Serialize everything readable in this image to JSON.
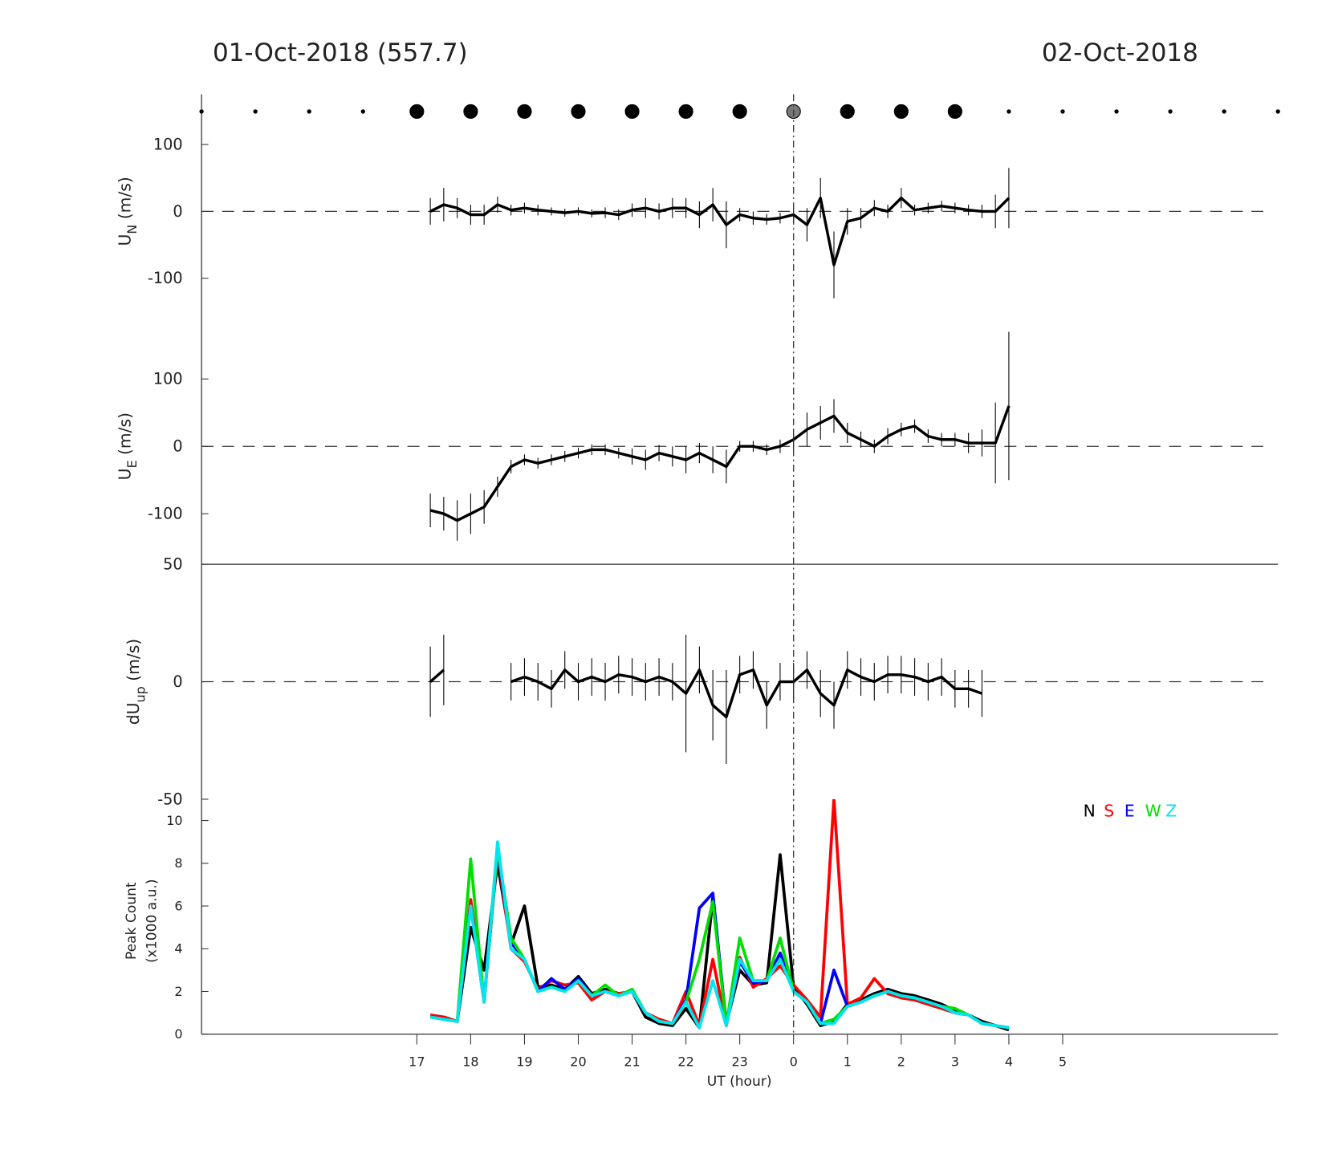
{
  "title_left": "01-Oct-2018 (557.7)",
  "title_right": "02-Oct-2018",
  "chart_data": [
    {
      "type": "line",
      "ylabel": "U",
      "ylabel_sub": "N",
      "ylabel_unit": "(m/s)",
      "xlim": [
        13,
        33
      ],
      "ylim": [
        -175,
        175
      ],
      "yticks": [
        -100,
        0,
        100
      ],
      "hline": 0,
      "markers": {
        "x": [
          13,
          14,
          15,
          16,
          17,
          18,
          19,
          20,
          21,
          22,
          23,
          24,
          25,
          26,
          27,
          28,
          29,
          30,
          31,
          32,
          33
        ],
        "sizes": [
          2,
          2,
          2,
          2,
          8,
          8,
          8,
          8,
          8,
          8,
          8,
          8,
          8,
          8,
          8,
          2,
          2,
          2,
          2,
          2,
          2
        ],
        "colors": [
          "#000",
          "#000",
          "#000",
          "#000",
          "#000",
          "#000",
          "#000",
          "#000",
          "#000",
          "#000",
          "#000",
          "#777",
          "#000",
          "#000",
          "#000",
          "#000",
          "#000",
          "#000",
          "#000",
          "#000",
          "#000"
        ]
      },
      "x": [
        17.25,
        17.5,
        17.75,
        18,
        18.25,
        18.5,
        18.75,
        19,
        19.25,
        19.5,
        19.75,
        20,
        20.25,
        20.5,
        20.75,
        21,
        21.25,
        21.5,
        21.75,
        22,
        22.25,
        22.5,
        22.75,
        23,
        23.25,
        23.5,
        23.75,
        24,
        24.25,
        24.5,
        24.75,
        25,
        25.25,
        25.5,
        25.75,
        26,
        26.25,
        26.5,
        26.75,
        27,
        27.25,
        27.5,
        27.75,
        28
      ],
      "series": [
        {
          "color": "#000",
          "values": [
            0,
            10,
            5,
            -5,
            -5,
            10,
            2,
            5,
            2,
            0,
            -2,
            0,
            -3,
            -2,
            -5,
            2,
            5,
            0,
            5,
            5,
            -5,
            10,
            -20,
            -5,
            -10,
            -12,
            -10,
            -5,
            -20,
            20,
            -80,
            -15,
            -10,
            5,
            0,
            20,
            2,
            5,
            8,
            5,
            2,
            0,
            0,
            20
          ],
          "errors": [
            20,
            25,
            15,
            15,
            15,
            12,
            8,
            8,
            8,
            6,
            6,
            6,
            6,
            8,
            8,
            10,
            15,
            12,
            15,
            15,
            20,
            25,
            35,
            10,
            10,
            8,
            8,
            10,
            25,
            30,
            50,
            20,
            15,
            12,
            10,
            15,
            8,
            8,
            8,
            8,
            8,
            10,
            25,
            45
          ]
        }
      ]
    },
    {
      "type": "line",
      "ylabel": "U",
      "ylabel_sub": "E",
      "ylabel_unit": "(m/s)",
      "xlim": [
        13,
        33
      ],
      "ylim": [
        -175,
        175
      ],
      "yticks": [
        -100,
        0,
        100
      ],
      "hline": 0,
      "x": [
        17.25,
        17.5,
        17.75,
        18,
        18.25,
        18.5,
        18.75,
        19,
        19.25,
        19.5,
        19.75,
        20,
        20.25,
        20.5,
        20.75,
        21,
        21.25,
        21.5,
        21.75,
        22,
        22.25,
        22.5,
        22.75,
        23,
        23.25,
        23.5,
        23.75,
        24,
        24.25,
        24.5,
        24.75,
        25,
        25.25,
        25.5,
        25.75,
        26,
        26.25,
        26.5,
        26.75,
        27,
        27.25,
        27.5,
        27.75,
        28
      ],
      "series": [
        {
          "color": "#000",
          "values": [
            -95,
            -100,
            -110,
            -100,
            -90,
            -60,
            -30,
            -20,
            -25,
            -20,
            -15,
            -10,
            -5,
            -5,
            -10,
            -15,
            -20,
            -10,
            -15,
            -20,
            -10,
            -20,
            -30,
            0,
            0,
            -5,
            0,
            10,
            25,
            35,
            45,
            20,
            10,
            0,
            15,
            25,
            30,
            15,
            10,
            10,
            5,
            5,
            5,
            60
          ],
          "errors": [
            25,
            25,
            30,
            30,
            25,
            15,
            10,
            8,
            8,
            8,
            8,
            8,
            8,
            8,
            8,
            12,
            15,
            12,
            15,
            20,
            15,
            20,
            25,
            8,
            8,
            8,
            10,
            15,
            25,
            25,
            25,
            15,
            12,
            10,
            12,
            10,
            10,
            10,
            10,
            10,
            15,
            20,
            60,
            110
          ]
        }
      ]
    },
    {
      "type": "line",
      "ylabel": "dU",
      "ylabel_sub": "up",
      "ylabel_unit": "(m/s)",
      "xlim": [
        13,
        33
      ],
      "ylim": [
        -50,
        50
      ],
      "yticks": [
        -50,
        0,
        50
      ],
      "hline": 0,
      "x": [
        17.25,
        17.5,
        17.75,
        18,
        18.25,
        18.5,
        18.75,
        19,
        19.25,
        19.5,
        19.75,
        20,
        20.25,
        20.5,
        20.75,
        21,
        21.25,
        21.5,
        21.75,
        22,
        22.25,
        22.5,
        22.75,
        23,
        23.25,
        23.5,
        23.75,
        24,
        24.25,
        24.5,
        24.75,
        25,
        25.25,
        25.5,
        25.75,
        26,
        26.25,
        26.5,
        26.75,
        27,
        27.25,
        27.5,
        27.75,
        28
      ],
      "series": [
        {
          "color": "#000",
          "values": [
            0,
            5,
            null,
            null,
            null,
            null,
            0,
            2,
            0,
            -3,
            5,
            0,
            2,
            0,
            3,
            2,
            0,
            2,
            0,
            -5,
            5,
            -10,
            -15,
            3,
            5,
            -10,
            0,
            0,
            5,
            -5,
            -10,
            5,
            2,
            0,
            3,
            3,
            2,
            0,
            2,
            -3,
            -3,
            -5,
            null,
            null
          ],
          "errors": [
            15,
            15,
            null,
            null,
            null,
            null,
            8,
            8,
            8,
            8,
            8,
            8,
            8,
            8,
            8,
            8,
            8,
            8,
            8,
            25,
            10,
            15,
            20,
            8,
            8,
            10,
            8,
            8,
            8,
            10,
            10,
            8,
            8,
            8,
            8,
            8,
            8,
            8,
            8,
            8,
            8,
            10,
            null,
            null
          ]
        }
      ]
    },
    {
      "type": "line",
      "ylabel": "Peak Count",
      "ylabel_2": "(x1000 a.u.)",
      "xlabel": "UT (hour)",
      "xlim": [
        13,
        33
      ],
      "ylim": [
        0,
        11
      ],
      "yticks": [
        0,
        2,
        4,
        6,
        8,
        10
      ],
      "vline": 24,
      "xticks": [
        17,
        18,
        19,
        20,
        21,
        22,
        23,
        {
          "value": 24,
          "label": "0"
        },
        {
          "value": 25,
          "label": "1"
        },
        {
          "value": 26,
          "label": "2"
        },
        {
          "value": 27,
          "label": "3"
        },
        {
          "value": 28,
          "label": "4"
        },
        {
          "value": 29,
          "label": "5"
        }
      ],
      "legend": "upper right",
      "x": [
        17.25,
        17.5,
        17.75,
        18,
        18.25,
        18.5,
        18.75,
        19,
        19.25,
        19.5,
        19.75,
        20,
        20.25,
        20.5,
        20.75,
        21,
        21.25,
        21.5,
        21.75,
        22,
        22.25,
        22.5,
        22.75,
        23,
        23.25,
        23.5,
        23.75,
        24,
        24.25,
        24.5,
        24.75,
        25,
        25.25,
        25.5,
        25.75,
        26,
        26.25,
        26.5,
        26.75,
        27,
        27.25,
        27.5,
        27.75,
        28
      ],
      "series": [
        {
          "name": "N",
          "color": "#000000",
          "values": [
            0.8,
            0.8,
            0.6,
            5,
            3,
            8,
            4.2,
            6,
            2.2,
            2.3,
            2.1,
            2.7,
            1.9,
            2.1,
            1.9,
            2,
            0.8,
            0.5,
            0.4,
            1.2,
            0.3,
            6.4,
            0.5,
            3,
            2.3,
            2.4,
            8.4,
            2.2,
            1.4,
            0.4,
            0.6,
            1.4,
            1.6,
            1.9,
            2.1,
            1.9,
            1.8,
            1.6,
            1.4,
            1.1,
            0.9,
            0.6,
            0.4,
            0.2
          ]
        },
        {
          "name": "S",
          "color": "#ff0000",
          "values": [
            0.9,
            0.8,
            0.6,
            6.3,
            1.6,
            8.5,
            4,
            3.4,
            2.1,
            2.5,
            2.3,
            2.4,
            1.6,
            2,
            1.9,
            2,
            1,
            0.7,
            0.5,
            2,
            0.4,
            3.5,
            0.4,
            3.6,
            2.2,
            2.6,
            3.2,
            2.3,
            1.6,
            0.8,
            11,
            1.4,
            1.7,
            2.6,
            1.9,
            1.7,
            1.6,
            1.4,
            1.2,
            1,
            0.9,
            0.5,
            0.4,
            0.3
          ]
        },
        {
          "name": "E",
          "color": "#0000ff",
          "values": [
            0.8,
            0.7,
            0.6,
            6,
            1.5,
            8.6,
            4.3,
            3.5,
            2,
            2.6,
            2.1,
            2.6,
            1.8,
            2,
            1.8,
            2,
            1,
            0.6,
            0.5,
            1.6,
            5.9,
            6.6,
            0.4,
            3.4,
            2.4,
            2.5,
            3.8,
            2,
            1.5,
            0.5,
            3,
            1.3,
            1.5,
            1.8,
            2,
            1.8,
            1.7,
            1.5,
            1.3,
            1,
            0.9,
            0.5,
            0.4,
            0.3
          ]
        },
        {
          "name": "W",
          "color": "#00e000",
          "values": [
            0.8,
            0.7,
            0.6,
            8.2,
            1.5,
            8.7,
            4.5,
            3.5,
            2,
            2.2,
            2,
            2.5,
            1.8,
            2.3,
            1.8,
            2.1,
            1,
            0.6,
            0.5,
            1.5,
            3.5,
            6.2,
            0.4,
            4.5,
            2.5,
            2.5,
            4.5,
            2,
            1.5,
            0.5,
            0.7,
            1.3,
            1.5,
            1.8,
            2,
            1.8,
            1.7,
            1.5,
            1.3,
            1.2,
            0.9,
            0.5,
            0.4,
            0.3
          ]
        },
        {
          "name": "Z",
          "color": "#00e5ee",
          "values": [
            0.8,
            0.7,
            0.6,
            6,
            1.5,
            9,
            4,
            3.5,
            2,
            2.2,
            2,
            2.5,
            1.8,
            2,
            1.8,
            2,
            1,
            0.6,
            0.5,
            1.5,
            0.3,
            2.5,
            0.4,
            3.5,
            2.5,
            2.5,
            3.5,
            2,
            1.5,
            0.5,
            0.5,
            1.3,
            1.5,
            1.8,
            2,
            1.8,
            1.7,
            1.5,
            1.3,
            1,
            0.9,
            0.5,
            0.4,
            0.3
          ]
        }
      ]
    }
  ]
}
